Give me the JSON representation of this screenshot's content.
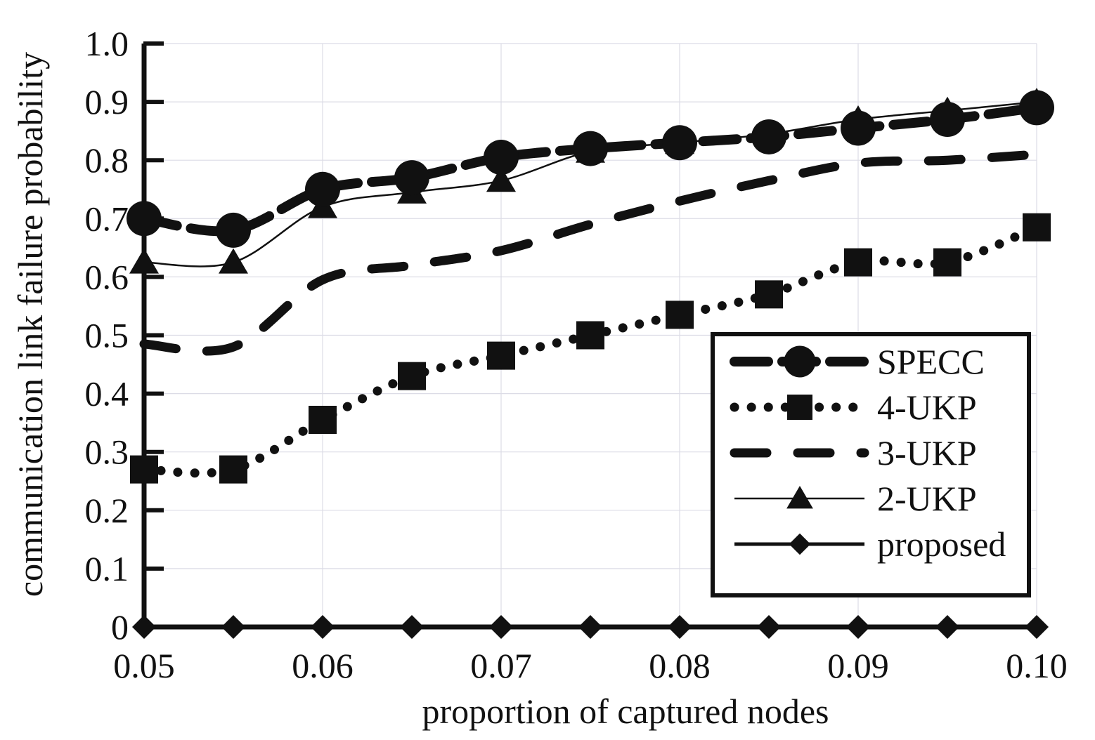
{
  "chart_data": {
    "type": "line",
    "xlabel": "proportion of captured nodes",
    "ylabel": "communication link failure probability",
    "x": [
      0.05,
      0.055,
      0.06,
      0.065,
      0.07,
      0.075,
      0.08,
      0.085,
      0.09,
      0.095,
      0.1
    ],
    "xlim": [
      0.05,
      0.1
    ],
    "ylim": [
      0,
      1.0
    ],
    "x_ticks": [
      0.05,
      0.06,
      0.07,
      0.08,
      0.09,
      0.1
    ],
    "x_tick_labels": [
      "0.05",
      "0.06",
      "0.07",
      "0.08",
      "0.09",
      "0.10"
    ],
    "y_ticks": [
      0,
      0.1,
      0.2,
      0.3,
      0.4,
      0.5,
      0.6,
      0.7,
      0.8,
      0.9,
      1.0
    ],
    "y_tick_labels": [
      "0",
      "0.1",
      "0.2",
      "0.3",
      "0.4",
      "0.5",
      "0.6",
      "0.7",
      "0.8",
      "0.9",
      "1.0"
    ],
    "grid": true,
    "legend_position": "bottom-right",
    "series": [
      {
        "name": "SPECC",
        "marker": "circle",
        "line": "long-dash",
        "values": [
          0.7,
          0.68,
          0.75,
          0.77,
          0.805,
          0.82,
          0.83,
          0.84,
          0.855,
          0.87,
          0.89
        ]
      },
      {
        "name": "4-UKP",
        "marker": "square",
        "line": "dotted",
        "values": [
          0.27,
          0.27,
          0.355,
          0.43,
          0.465,
          0.5,
          0.535,
          0.57,
          0.625,
          0.625,
          0.685
        ]
      },
      {
        "name": "3-UKP",
        "marker": "none",
        "line": "dash",
        "values": [
          0.485,
          0.48,
          0.595,
          0.62,
          0.645,
          0.69,
          0.73,
          0.765,
          0.795,
          0.8,
          0.81
        ]
      },
      {
        "name": "2-UKP",
        "marker": "triangle",
        "line": "thin-solid",
        "values": [
          0.625,
          0.625,
          0.72,
          0.745,
          0.765,
          0.815,
          0.83,
          0.845,
          0.87,
          0.885,
          0.9
        ]
      },
      {
        "name": "proposed",
        "marker": "diamond",
        "line": "solid",
        "values": [
          0,
          0,
          0,
          0,
          0,
          0,
          0,
          0,
          0,
          0,
          0
        ]
      }
    ]
  }
}
